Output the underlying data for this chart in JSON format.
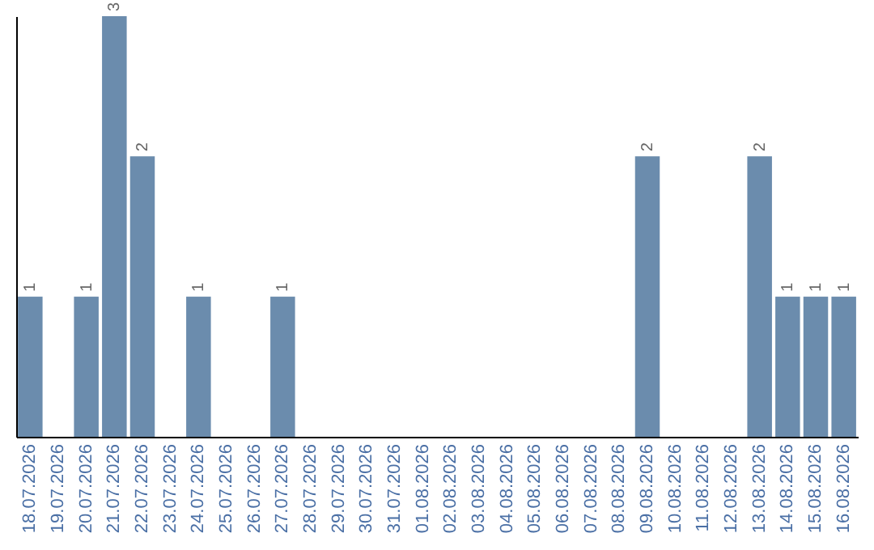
{
  "chart_data": {
    "type": "bar",
    "categories": [
      "18.07.2026",
      "19.07.2026",
      "20.07.2026",
      "21.07.2026",
      "22.07.2026",
      "23.07.2026",
      "24.07.2026",
      "25.07.2026",
      "26.07.2026",
      "27.07.2026",
      "28.07.2026",
      "29.07.2026",
      "30.07.2026",
      "31.07.2026",
      "01.08.2026",
      "02.08.2026",
      "03.08.2026",
      "04.08.2026",
      "05.08.2026",
      "06.08.2026",
      "07.08.2026",
      "08.08.2026",
      "09.08.2026",
      "10.08.2026",
      "11.08.2026",
      "12.08.2026",
      "13.08.2026",
      "14.08.2026",
      "15.08.2026",
      "16.08.2026"
    ],
    "values": [
      1,
      0,
      1,
      3,
      2,
      0,
      1,
      0,
      0,
      1,
      0,
      0,
      0,
      0,
      0,
      0,
      0,
      0,
      0,
      0,
      0,
      0,
      2,
      0,
      0,
      0,
      2,
      1,
      1,
      1
    ],
    "value_labels": [
      "1",
      null,
      "1",
      "3",
      "2",
      null,
      "1",
      null,
      null,
      "1",
      null,
      null,
      null,
      null,
      null,
      null,
      null,
      null,
      null,
      null,
      null,
      null,
      "2",
      null,
      null,
      null,
      "2",
      "1",
      "1",
      "1"
    ],
    "color": "#6b8cad"
  }
}
